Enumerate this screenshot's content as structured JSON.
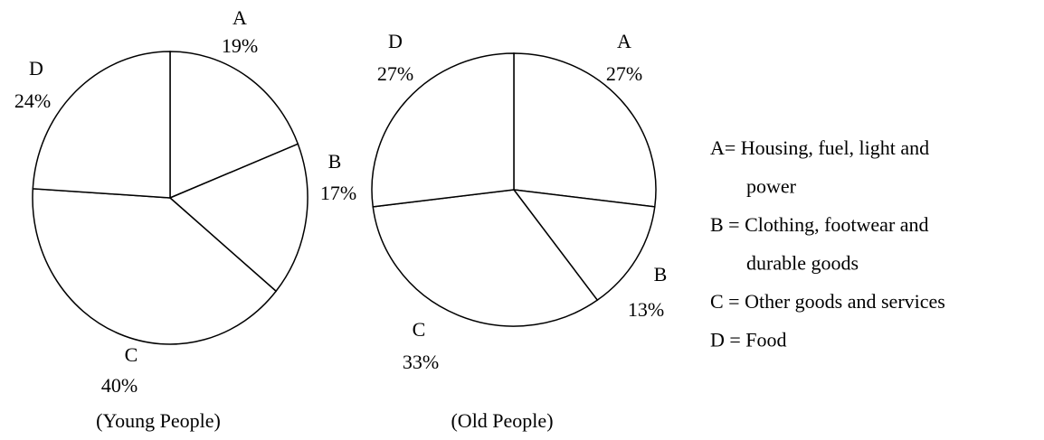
{
  "chart_data": [
    {
      "type": "pie",
      "subtitle": "(Young People)",
      "categories": [
        "A",
        "B",
        "C",
        "D"
      ],
      "values": [
        19,
        17,
        40,
        24
      ],
      "value_labels": [
        "19%",
        "17%",
        "40%",
        "24%"
      ],
      "color": "#ffffff"
    },
    {
      "type": "pie",
      "subtitle": "(Old People)",
      "categories": [
        "A",
        "B",
        "C",
        "D"
      ],
      "values": [
        27,
        13,
        33,
        27
      ],
      "value_labels": [
        "27%",
        "13%",
        "33%",
        "27%"
      ],
      "color": "#ffffff"
    }
  ],
  "legend": [
    [
      "A= Housing, fuel, light and",
      "power"
    ],
    [
      "B = Clothing, footwear and",
      "durable goods"
    ],
    [
      "C = Other goods and services"
    ],
    [
      "D = Food"
    ]
  ]
}
